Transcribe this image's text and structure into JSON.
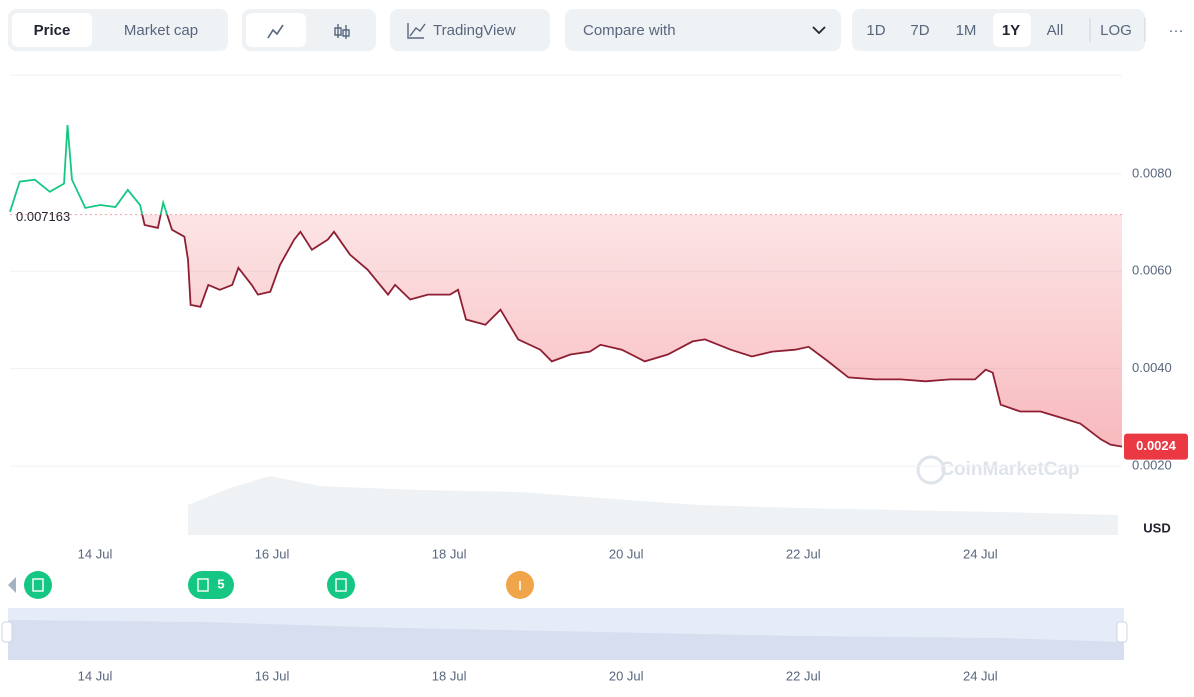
{
  "toolbar": {
    "price": "Price",
    "market_cap": "Market cap",
    "tradingview": "TradingView",
    "compare": "Compare with",
    "ranges": [
      "1D",
      "7D",
      "1M",
      "1Y",
      "All"
    ],
    "log": "LOG",
    "more": "···"
  },
  "watermark": "CoinMarketCap",
  "event_badge_count": "5",
  "chart_data": {
    "type": "line",
    "x": [
      13.04,
      13.15,
      13.32,
      13.49,
      13.65,
      13.69,
      13.74,
      13.89,
      14.06,
      14.23,
      14.37,
      14.51,
      14.56,
      14.71,
      14.77,
      14.87,
      15.01,
      15.05,
      15.08,
      15.19,
      15.28,
      15.41,
      15.55,
      15.62,
      15.77,
      15.84,
      15.98,
      16.09,
      16.25,
      16.32,
      16.45,
      16.63,
      16.7,
      16.88,
      17.08,
      17.31,
      17.39,
      17.56,
      17.76,
      18.01,
      18.1,
      18.19,
      18.41,
      18.58,
      18.78,
      19.03,
      19.16,
      19.37,
      19.59,
      19.71,
      19.95,
      20.21,
      20.47,
      20.75,
      20.89,
      21.18,
      21.42,
      21.65,
      21.91,
      22.06,
      22.28,
      22.51,
      22.81,
      23.1,
      23.38,
      23.66,
      23.94,
      24.06,
      24.14,
      24.23,
      24.45,
      24.68,
      24.9,
      25.13,
      25.36,
      25.47,
      25.6
    ],
    "values": [
      0.00722,
      0.00784,
      0.00788,
      0.00763,
      0.0078,
      0.009,
      0.00788,
      0.0073,
      0.00736,
      0.00732,
      0.00767,
      0.00736,
      0.00695,
      0.00689,
      0.00741,
      0.00685,
      0.00671,
      0.00624,
      0.00531,
      0.00527,
      0.00572,
      0.00562,
      0.00572,
      0.00607,
      0.00572,
      0.00552,
      0.00558,
      0.00613,
      0.00665,
      0.00681,
      0.00644,
      0.00665,
      0.00681,
      0.00634,
      0.00603,
      0.00552,
      0.00572,
      0.00542,
      0.00552,
      0.00552,
      0.00562,
      0.00501,
      0.0049,
      0.00521,
      0.0046,
      0.00439,
      0.00415,
      0.00429,
      0.00435,
      0.00449,
      0.00439,
      0.00415,
      0.00429,
      0.00456,
      0.0046,
      0.00439,
      0.00425,
      0.00435,
      0.00439,
      0.00445,
      0.00415,
      0.00382,
      0.00378,
      0.00378,
      0.00374,
      0.00378,
      0.00378,
      0.00398,
      0.00392,
      0.00326,
      0.00312,
      0.00312,
      0.003,
      0.00287,
      0.00255,
      0.00244,
      0.0024
    ],
    "up_color": "#16c784",
    "down_color": "#8e1f33",
    "reference_value": 0.007163,
    "reference_label": "0.007163",
    "price_tag": "0.0024",
    "xlim": [
      13.04,
      25.6
    ],
    "xticks": [
      {
        "value": 14,
        "label": "14 Jul"
      },
      {
        "value": 16,
        "label": "16 Jul"
      },
      {
        "value": 18,
        "label": "18 Jul"
      },
      {
        "value": 20,
        "label": "20 Jul"
      },
      {
        "value": 22,
        "label": "22 Jul"
      },
      {
        "value": 24,
        "label": "24 Jul"
      }
    ],
    "ylim": [
      0.0006,
      0.01
    ],
    "yticks": [
      {
        "value": 0.002,
        "label": "0.0020"
      },
      {
        "value": 0.004,
        "label": "0.0040"
      },
      {
        "value": 0.006,
        "label": "0.0060"
      },
      {
        "value": 0.008,
        "label": "0.0080"
      }
    ],
    "y_unit": "USD",
    "grid": true
  }
}
